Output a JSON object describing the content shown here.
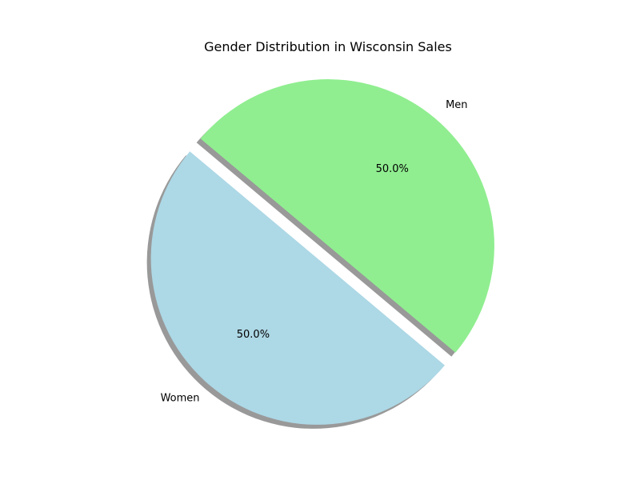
{
  "chart_data": {
    "type": "pie",
    "title": "Gender Distribution in Wisconsin Sales",
    "slices": [
      {
        "label": "Women",
        "value": 50,
        "percent_label": "50.0%",
        "color": "#add8e6",
        "exploded": true
      },
      {
        "label": "Men",
        "value": 50,
        "percent_label": "50.0%",
        "color": "#90ee90",
        "exploded": false
      }
    ],
    "start_angle_deg": 140,
    "shadow": true
  }
}
